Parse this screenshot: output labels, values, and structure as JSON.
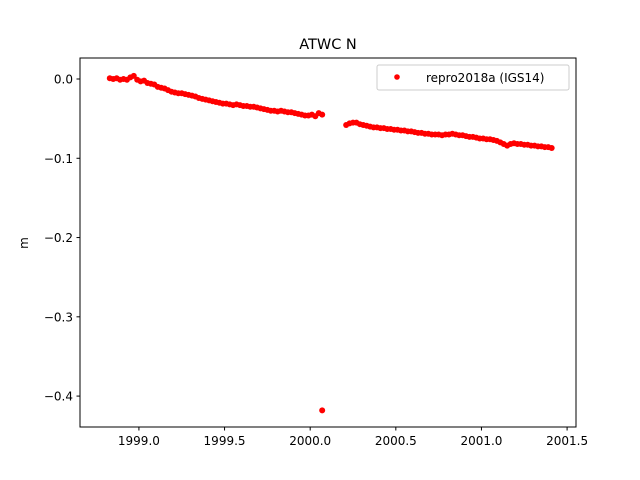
{
  "chart_data": {
    "type": "scatter",
    "title": "ATWC N",
    "xlabel": "",
    "ylabel": "m",
    "xlim": [
      1998.656,
      2001.552
    ],
    "ylim": [
      -0.439,
      0.0265
    ],
    "xticks": [
      1999.0,
      1999.5,
      2000.0,
      2000.5,
      2001.0,
      2001.5
    ],
    "xtick_labels": [
      "1999.0",
      "1999.5",
      "2000.0",
      "2000.5",
      "2001.0",
      "2001.5"
    ],
    "yticks": [
      0.0,
      -0.1,
      -0.2,
      -0.3,
      -0.4
    ],
    "ytick_labels": [
      "0.0",
      "−0.1",
      "−0.2",
      "−0.3",
      "−0.4"
    ],
    "grid": false,
    "legend_position": "top-right",
    "series": [
      {
        "name": "repro2018a (IGS14)",
        "color": "#ff0000",
        "marker": "circle",
        "x": [
          1998.83,
          1998.85,
          1998.87,
          1998.89,
          1998.91,
          1998.93,
          1998.95,
          1998.97,
          1998.99,
          1999.01,
          1999.03,
          1999.05,
          1999.07,
          1999.09,
          1999.11,
          1999.13,
          1999.15,
          1999.17,
          1999.19,
          1999.21,
          1999.23,
          1999.25,
          1999.27,
          1999.29,
          1999.31,
          1999.33,
          1999.35,
          1999.37,
          1999.39,
          1999.41,
          1999.43,
          1999.45,
          1999.47,
          1999.49,
          1999.51,
          1999.53,
          1999.55,
          1999.57,
          1999.59,
          1999.61,
          1999.63,
          1999.65,
          1999.67,
          1999.69,
          1999.71,
          1999.73,
          1999.75,
          1999.77,
          1999.79,
          1999.81,
          1999.83,
          1999.85,
          1999.87,
          1999.89,
          1999.91,
          1999.93,
          1999.95,
          1999.97,
          1999.99,
          2000.01,
          2000.03,
          2000.05,
          2000.07,
          2000.07,
          2000.21,
          2000.23,
          2000.25,
          2000.27,
          2000.29,
          2000.31,
          2000.33,
          2000.35,
          2000.37,
          2000.39,
          2000.41,
          2000.43,
          2000.45,
          2000.47,
          2000.49,
          2000.51,
          2000.53,
          2000.55,
          2000.57,
          2000.59,
          2000.61,
          2000.63,
          2000.65,
          2000.67,
          2000.69,
          2000.71,
          2000.73,
          2000.75,
          2000.77,
          2000.79,
          2000.81,
          2000.83,
          2000.85,
          2000.87,
          2000.89,
          2000.91,
          2000.93,
          2000.95,
          2000.97,
          2000.99,
          2001.01,
          2001.03,
          2001.05,
          2001.07,
          2001.09,
          2001.11,
          2001.13,
          2001.15,
          2001.17,
          2001.19,
          2001.21,
          2001.23,
          2001.25,
          2001.27,
          2001.29,
          2001.31,
          2001.33,
          2001.35,
          2001.37,
          2001.39,
          2001.41
        ],
        "y": [
          0.001,
          0.0,
          0.001,
          -0.001,
          0.0,
          -0.001,
          0.002,
          0.004,
          -0.001,
          -0.003,
          -0.002,
          -0.005,
          -0.006,
          -0.007,
          -0.01,
          -0.011,
          -0.012,
          -0.014,
          -0.016,
          -0.017,
          -0.018,
          -0.018,
          -0.019,
          -0.02,
          -0.021,
          -0.022,
          -0.024,
          -0.025,
          -0.026,
          -0.027,
          -0.028,
          -0.029,
          -0.03,
          -0.031,
          -0.031,
          -0.032,
          -0.033,
          -0.032,
          -0.033,
          -0.034,
          -0.034,
          -0.035,
          -0.035,
          -0.036,
          -0.037,
          -0.038,
          -0.039,
          -0.04,
          -0.04,
          -0.041,
          -0.04,
          -0.041,
          -0.042,
          -0.042,
          -0.043,
          -0.044,
          -0.045,
          -0.046,
          -0.046,
          -0.045,
          -0.047,
          -0.043,
          -0.045,
          -0.418,
          -0.058,
          -0.056,
          -0.055,
          -0.055,
          -0.057,
          -0.058,
          -0.059,
          -0.06,
          -0.061,
          -0.061,
          -0.062,
          -0.062,
          -0.063,
          -0.063,
          -0.064,
          -0.064,
          -0.065,
          -0.065,
          -0.066,
          -0.066,
          -0.067,
          -0.068,
          -0.068,
          -0.069,
          -0.069,
          -0.07,
          -0.07,
          -0.07,
          -0.071,
          -0.07,
          -0.07,
          -0.069,
          -0.07,
          -0.071,
          -0.071,
          -0.072,
          -0.073,
          -0.073,
          -0.074,
          -0.075,
          -0.075,
          -0.076,
          -0.076,
          -0.077,
          -0.078,
          -0.08,
          -0.082,
          -0.084,
          -0.082,
          -0.081,
          -0.082,
          -0.082,
          -0.083,
          -0.083,
          -0.084,
          -0.084,
          -0.085,
          -0.085,
          -0.086,
          -0.086,
          -0.087
        ]
      }
    ]
  }
}
